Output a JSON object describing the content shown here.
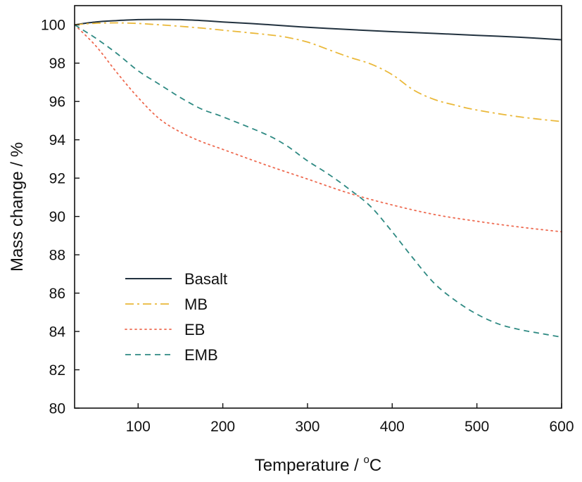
{
  "chart_data": {
    "type": "line",
    "xlabel": "Temperature / °C",
    "xlabel_main": "Temperature / ",
    "xlabel_sup": "o",
    "xlabel_unit": "C",
    "ylabel": "Mass change / %",
    "xlim": [
      25,
      600
    ],
    "ylim": [
      80,
      101
    ],
    "xticks": [
      100,
      200,
      300,
      400,
      500,
      600
    ],
    "xtick_labels": [
      "100",
      "200",
      "300",
      "400",
      "500",
      "600"
    ],
    "yticks": [
      80,
      82,
      84,
      86,
      88,
      90,
      92,
      94,
      96,
      98,
      100
    ],
    "ytick_labels": [
      "80",
      "82",
      "84",
      "86",
      "88",
      "90",
      "92",
      "94",
      "96",
      "98",
      "100"
    ],
    "grid": false,
    "legend_position": "bottom-left",
    "series": [
      {
        "name": "Basalt",
        "color": "#22323f",
        "dash": "solid",
        "x": [
          25,
          50,
          75,
          100,
          125,
          150,
          175,
          200,
          250,
          300,
          350,
          400,
          450,
          500,
          550,
          600
        ],
        "y": [
          100.0,
          100.15,
          100.22,
          100.27,
          100.28,
          100.27,
          100.22,
          100.15,
          100.02,
          99.87,
          99.75,
          99.64,
          99.55,
          99.45,
          99.35,
          99.22
        ]
      },
      {
        "name": "MB",
        "color": "#eab839",
        "dash": "dashdot",
        "x": [
          25,
          50,
          75,
          100,
          125,
          150,
          175,
          200,
          250,
          275,
          300,
          325,
          350,
          375,
          400,
          425,
          450,
          475,
          500,
          550,
          600
        ],
        "y": [
          100.0,
          100.08,
          100.1,
          100.07,
          100.0,
          99.92,
          99.83,
          99.72,
          99.5,
          99.35,
          99.1,
          98.7,
          98.3,
          97.95,
          97.4,
          96.6,
          96.1,
          95.8,
          95.55,
          95.2,
          94.95
        ]
      },
      {
        "name": "EB",
        "color": "#ee6a50",
        "dash": "dotted",
        "x": [
          25,
          50,
          75,
          100,
          125,
          150,
          175,
          200,
          250,
          300,
          350,
          400,
          450,
          500,
          550,
          600
        ],
        "y": [
          100.0,
          98.9,
          97.5,
          96.2,
          95.1,
          94.4,
          93.9,
          93.5,
          92.7,
          91.95,
          91.2,
          90.6,
          90.1,
          89.75,
          89.45,
          89.2
        ]
      },
      {
        "name": "EMB",
        "color": "#2f8a83",
        "dash": "dashed",
        "x": [
          25,
          50,
          75,
          100,
          125,
          150,
          175,
          200,
          250,
          275,
          300,
          325,
          350,
          375,
          400,
          425,
          450,
          475,
          500,
          525,
          550,
          575,
          600
        ],
        "y": [
          100.0,
          99.3,
          98.5,
          97.6,
          96.9,
          96.2,
          95.6,
          95.2,
          94.3,
          93.7,
          92.9,
          92.2,
          91.4,
          90.5,
          89.2,
          87.8,
          86.5,
          85.6,
          84.9,
          84.4,
          84.1,
          83.9,
          83.7
        ]
      }
    ]
  }
}
